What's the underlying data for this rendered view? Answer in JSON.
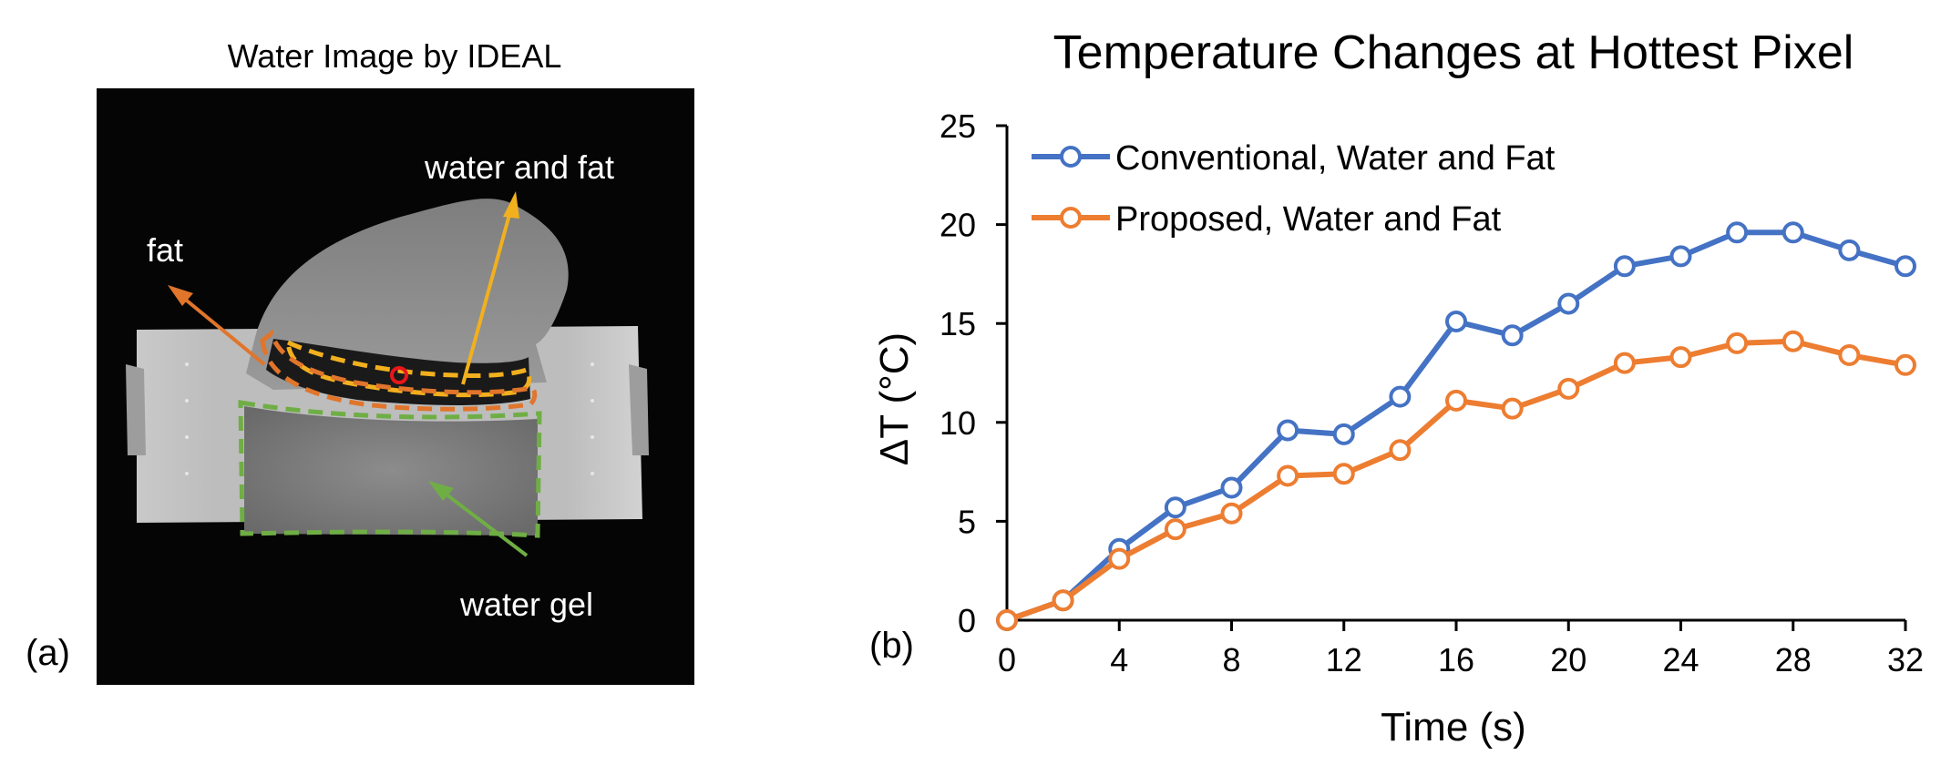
{
  "panel_a": {
    "title": "Water Image by  IDEAL",
    "label": "(a)",
    "annotations": [
      "water and fat",
      "fat",
      "water gel"
    ],
    "colors": {
      "fat": "#E0752B",
      "water_and_fat": "#F2B01E",
      "water_gel": "#6FAE45",
      "hot_pixel": "#E8161B"
    }
  },
  "chart_data": {
    "type": "line",
    "label": "(b)",
    "title": "Temperature Changes at Hottest Pixel",
    "xlabel": "Time (s)",
    "ylabel": "ΔT (°C)",
    "xlim": [
      0,
      32
    ],
    "ylim": [
      0,
      25
    ],
    "xticks": [
      0,
      4,
      8,
      12,
      16,
      20,
      24,
      28,
      32
    ],
    "yticks": [
      0,
      5,
      10,
      15,
      20,
      25
    ],
    "grid": false,
    "legend_position": "top-left",
    "x": [
      0,
      2,
      4,
      6,
      8,
      10,
      12,
      14,
      16,
      18,
      20,
      22,
      24,
      26,
      28,
      30,
      32
    ],
    "series": [
      {
        "name": "Conventional, Water and Fat",
        "color": "#4472C4",
        "values": [
          0,
          1,
          3.6,
          5.7,
          6.7,
          9.6,
          9.4,
          11.3,
          15.1,
          14.4,
          16.0,
          17.9,
          18.4,
          19.6,
          19.6,
          18.7,
          17.9
        ]
      },
      {
        "name": "Proposed, Water and Fat",
        "color": "#ED7D31",
        "values": [
          0,
          1,
          3.1,
          4.6,
          5.4,
          7.3,
          7.4,
          8.6,
          11.1,
          10.7,
          11.7,
          13.0,
          13.3,
          14.0,
          14.1,
          13.4,
          12.9
        ]
      }
    ]
  }
}
